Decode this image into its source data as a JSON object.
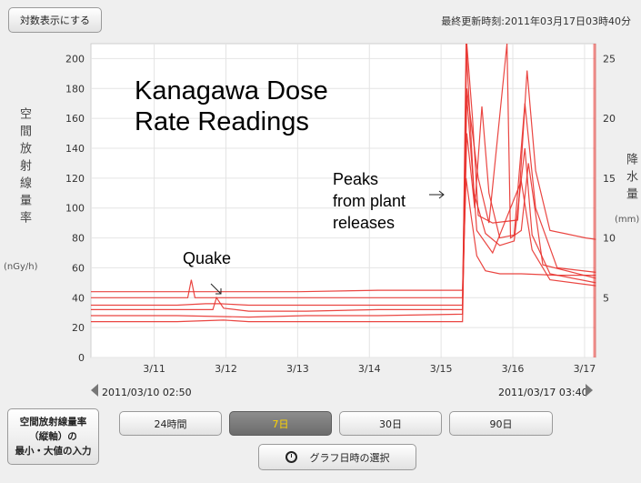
{
  "header": {
    "log_button": "対数表示にする",
    "last_updated": "最終更新時刻:2011年03月17日03時40分"
  },
  "axes": {
    "left_label": "空間放射線量率",
    "left_unit": "(nGy/h)",
    "right_label": "降水量",
    "right_unit": "(mm)"
  },
  "annotations": {
    "title": "Kanagawa Dose\nRate Readings",
    "quake": "Quake",
    "peaks": "Peaks\nfrom plant\nreleases"
  },
  "range": {
    "start": "2011/03/10 02:50",
    "end": "2011/03/17 03:40"
  },
  "controls": {
    "minmax_button": "空間放射線量率\n（縦軸）の\n最小・大値の入力",
    "periods": [
      "24時間",
      "7日",
      "30日",
      "90日"
    ],
    "active_period": "7日",
    "date_select_button": "グラフ日時の選択"
  },
  "colors": {
    "series": "#e8322e",
    "active_text": "#ffd400"
  },
  "chart_data": {
    "type": "line",
    "x_tick_labels": [
      "3/11",
      "3/12",
      "3/13",
      "3/14",
      "3/15",
      "3/16",
      "3/17"
    ],
    "xlim": [
      "2011-03-10 02:50",
      "2011-03-17 03:40"
    ],
    "ylim": [
      0,
      210
    ],
    "yticks": [
      0,
      20,
      40,
      60,
      80,
      100,
      120,
      140,
      160,
      180,
      200
    ],
    "y2lim": [
      0,
      26.25
    ],
    "y2ticks": [
      5,
      10,
      15,
      20,
      25
    ],
    "grid": true,
    "series": [
      {
        "values": [
          [
            0.0,
            44
          ],
          [
            1.2,
            44
          ],
          [
            2.9,
            44
          ],
          [
            4.0,
            45
          ],
          [
            5.0,
            45
          ],
          [
            5.18,
            45
          ],
          [
            5.23,
            120
          ],
          [
            5.3,
            95
          ],
          [
            5.38,
            68
          ],
          [
            5.5,
            58
          ],
          [
            5.7,
            56
          ],
          [
            6.0,
            56
          ],
          [
            6.5,
            55
          ],
          [
            7.04,
            55
          ]
        ]
      },
      {
        "values": [
          [
            0.0,
            40
          ],
          [
            1.2,
            40
          ],
          [
            1.35,
            40
          ],
          [
            1.4,
            52
          ],
          [
            1.45,
            40
          ],
          [
            2.9,
            40
          ],
          [
            4.0,
            40
          ],
          [
            5.0,
            40
          ],
          [
            5.18,
            40
          ],
          [
            5.24,
            210
          ],
          [
            5.32,
            160
          ],
          [
            5.4,
            95
          ],
          [
            5.6,
            90
          ],
          [
            5.95,
            92
          ],
          [
            6.08,
            192
          ],
          [
            6.2,
            125
          ],
          [
            6.4,
            85
          ],
          [
            6.6,
            83
          ],
          [
            6.9,
            80
          ],
          [
            7.04,
            79
          ]
        ]
      },
      {
        "values": [
          [
            0.0,
            35
          ],
          [
            1.2,
            35
          ],
          [
            1.6,
            36
          ],
          [
            1.8,
            36
          ],
          [
            2.2,
            35
          ],
          [
            3.0,
            35
          ],
          [
            4.0,
            35
          ],
          [
            5.18,
            35
          ],
          [
            5.24,
            150
          ],
          [
            5.35,
            100
          ],
          [
            5.45,
            168
          ],
          [
            5.55,
            110
          ],
          [
            5.7,
            80
          ],
          [
            5.9,
            82
          ],
          [
            6.05,
            170
          ],
          [
            6.2,
            100
          ],
          [
            6.5,
            60
          ],
          [
            7.04,
            57
          ]
        ]
      },
      {
        "values": [
          [
            0.0,
            32
          ],
          [
            1.2,
            32
          ],
          [
            1.7,
            32
          ],
          [
            1.75,
            40
          ],
          [
            1.85,
            33
          ],
          [
            2.2,
            31
          ],
          [
            3.0,
            31
          ],
          [
            4.0,
            32
          ],
          [
            5.18,
            32
          ],
          [
            5.24,
            180
          ],
          [
            5.4,
            120
          ],
          [
            5.55,
            90
          ],
          [
            5.8,
            210
          ],
          [
            5.85,
            80
          ],
          [
            6.0,
            85
          ],
          [
            6.1,
            130
          ],
          [
            6.3,
            62
          ],
          [
            7.04,
            53
          ]
        ]
      },
      {
        "values": [
          [
            0.0,
            28
          ],
          [
            1.2,
            28
          ],
          [
            2.2,
            27
          ],
          [
            3.0,
            28
          ],
          [
            4.0,
            28
          ],
          [
            5.18,
            29
          ],
          [
            5.23,
            210
          ],
          [
            5.34,
            110
          ],
          [
            5.5,
            83
          ],
          [
            5.7,
            75
          ],
          [
            5.9,
            78
          ],
          [
            6.05,
            140
          ],
          [
            6.15,
            82
          ],
          [
            6.4,
            56
          ],
          [
            7.04,
            50
          ]
        ]
      },
      {
        "values": [
          [
            0.0,
            24
          ],
          [
            1.2,
            24
          ],
          [
            1.85,
            25
          ],
          [
            2.2,
            24
          ],
          [
            3.0,
            24
          ],
          [
            4.0,
            24
          ],
          [
            5.18,
            24
          ],
          [
            5.24,
            175
          ],
          [
            5.38,
            85
          ],
          [
            5.6,
            70
          ],
          [
            6.0,
            118
          ],
          [
            6.15,
            72
          ],
          [
            6.4,
            52
          ],
          [
            7.04,
            48
          ]
        ]
      }
    ]
  }
}
